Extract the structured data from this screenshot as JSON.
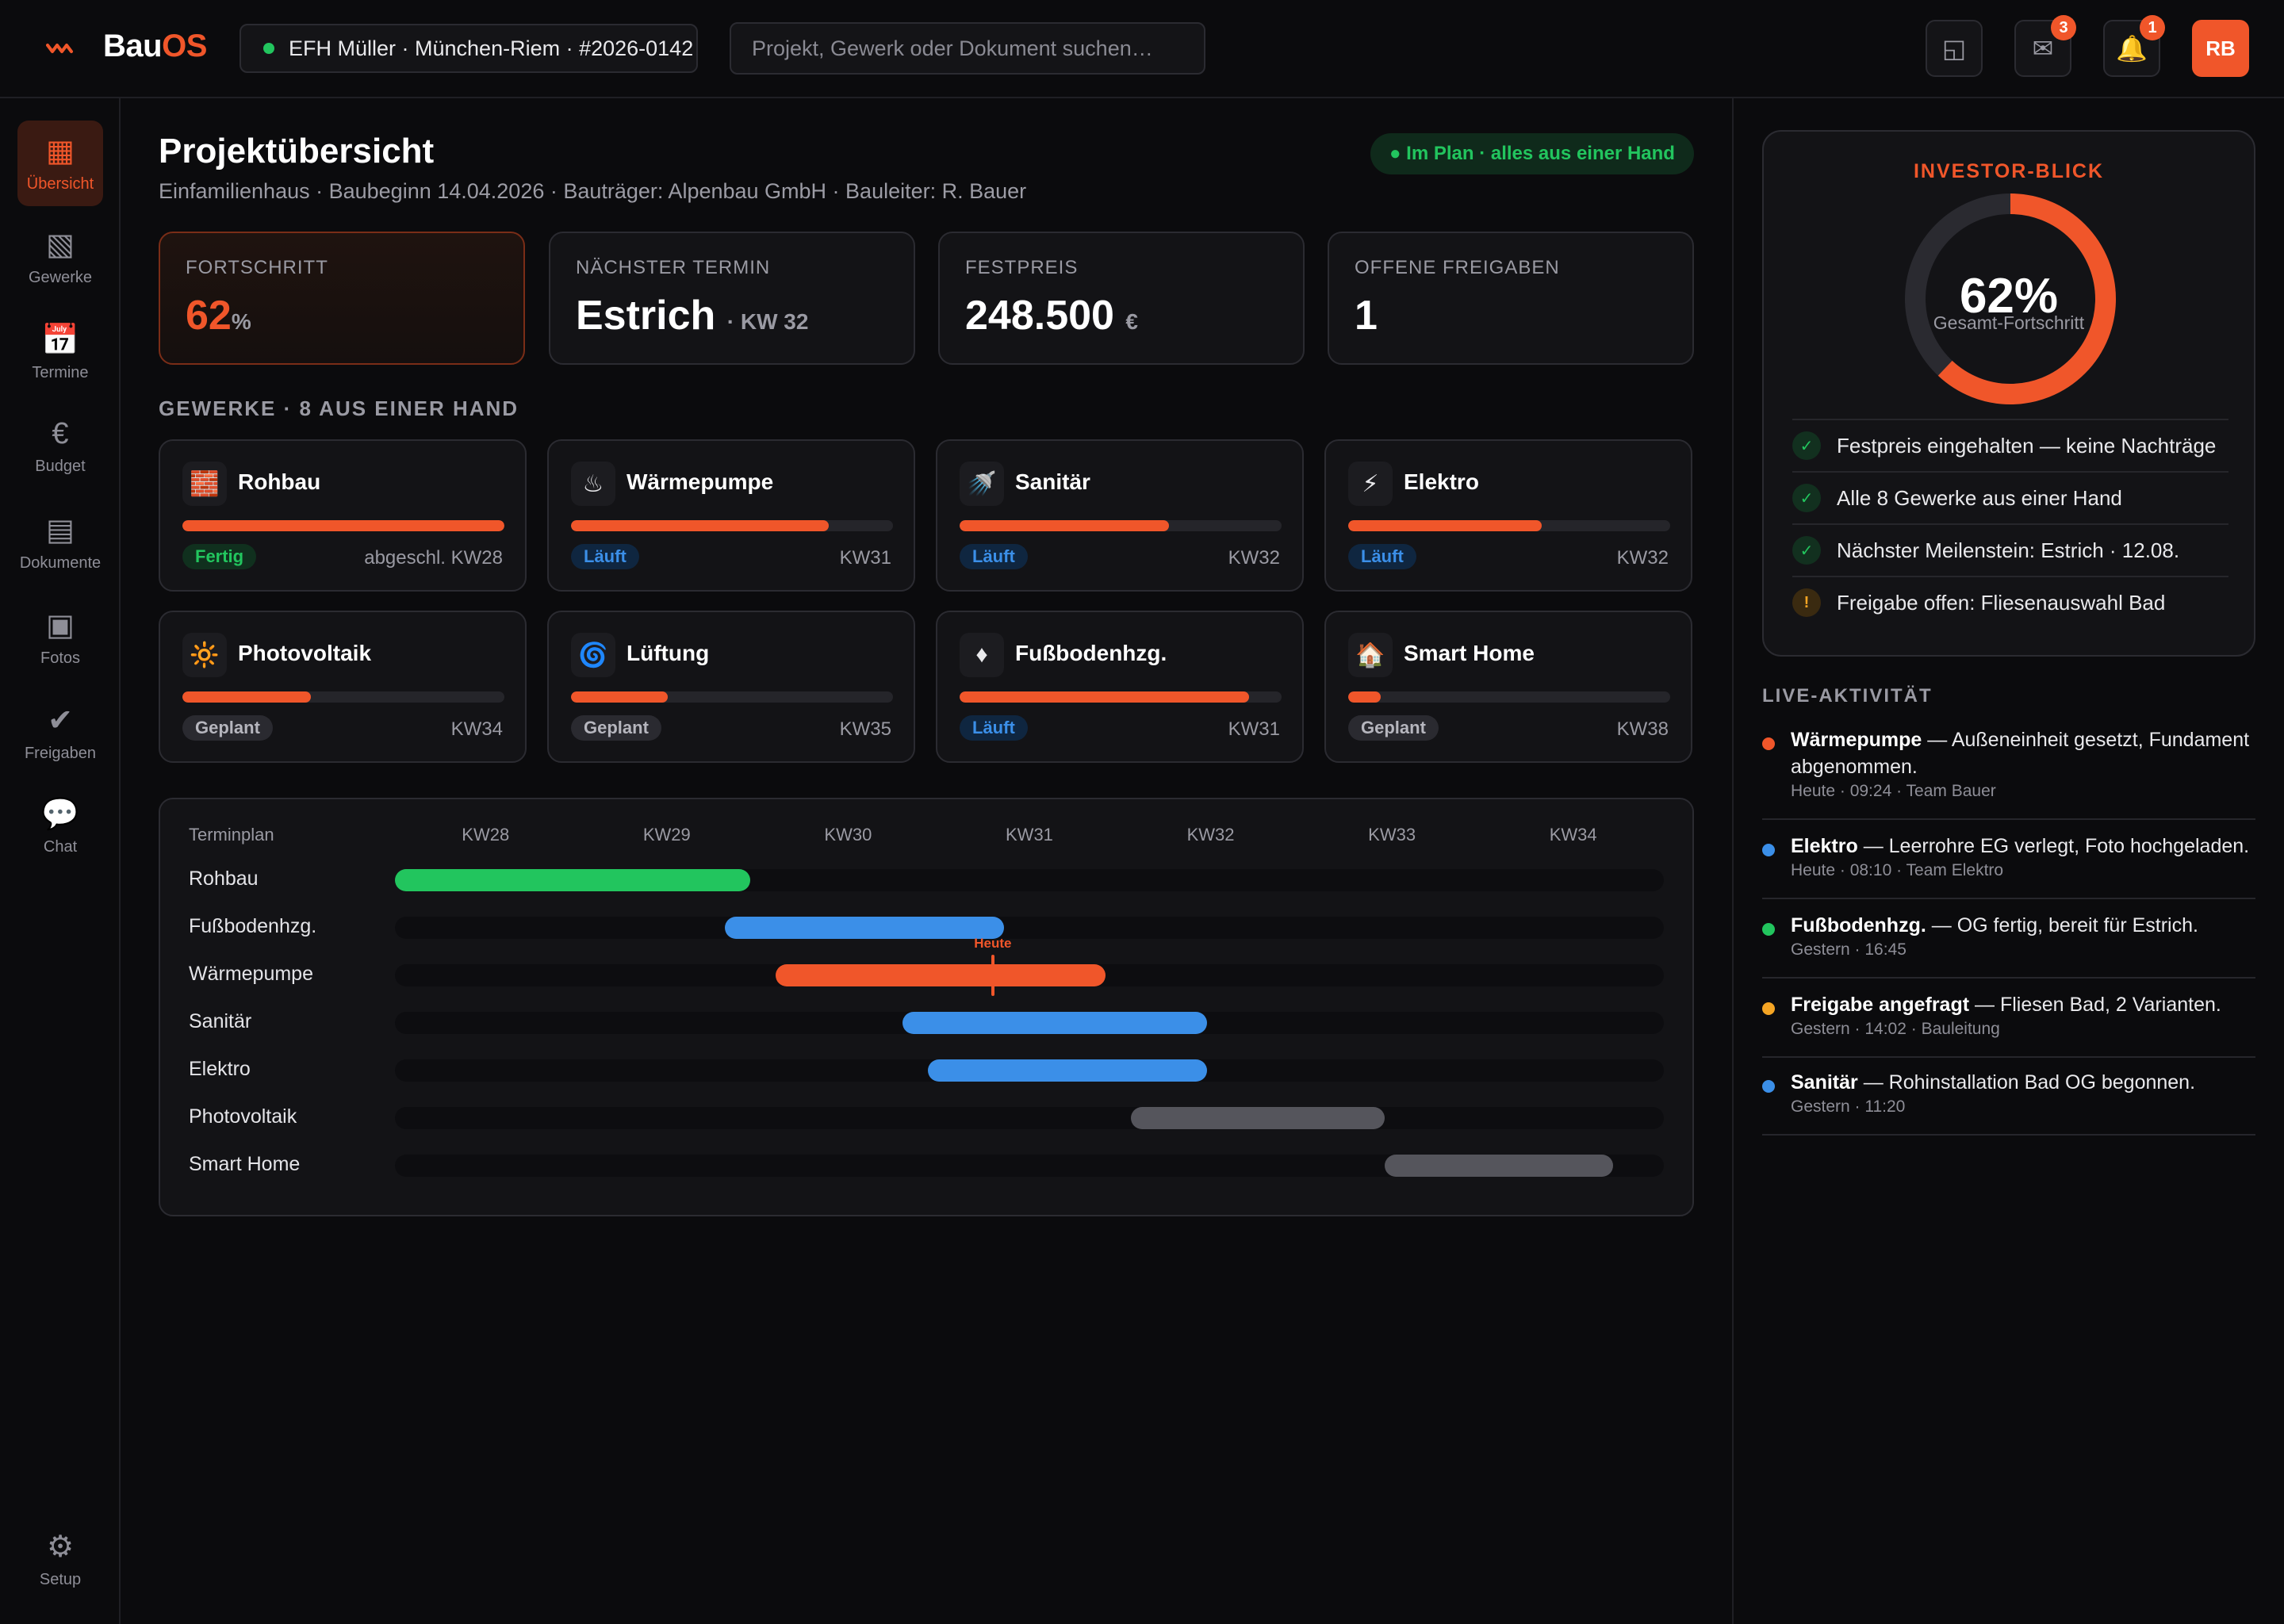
{
  "app": {
    "logo_prefix": "Bau",
    "logo_suffix": "OS",
    "project": "EFH Müller · München-Riem · #2026-0142",
    "search_placeholder": "Projekt, Gewerk oder Dokument suchen…",
    "icons": [
      {
        "name": "layout-icon",
        "glyph": "◱",
        "badge": ""
      },
      {
        "name": "mail-icon",
        "glyph": "✉",
        "badge": "3"
      },
      {
        "name": "bell-icon",
        "glyph": "🔔",
        "badge": "1"
      }
    ],
    "avatar": "RB"
  },
  "sidebar": {
    "items": [
      {
        "label": "Übersicht",
        "icon": "grid-icon",
        "glyph": "▦",
        "active": true
      },
      {
        "label": "Gewerke",
        "icon": "layers-icon",
        "glyph": "▧",
        "active": false
      },
      {
        "label": "Termine",
        "icon": "calendar-icon",
        "glyph": "📅",
        "active": false
      },
      {
        "label": "Budget",
        "icon": "euro-icon",
        "glyph": "€",
        "active": false
      },
      {
        "label": "Dokumente",
        "icon": "document-icon",
        "glyph": "▤",
        "active": false
      },
      {
        "label": "Fotos",
        "icon": "photo-icon",
        "glyph": "▣",
        "active": false
      },
      {
        "label": "Freigaben",
        "icon": "check-icon",
        "glyph": "✔",
        "active": false
      },
      {
        "label": "Chat",
        "icon": "chat-icon",
        "glyph": "💬",
        "active": false
      }
    ],
    "setup": {
      "label": "Setup",
      "icon": "gear-icon",
      "glyph": "⚙"
    }
  },
  "header": {
    "title": "Projektübersicht",
    "subtitle": "Einfamilienhaus · Baubeginn 14.04.2026 · Bauträger: Alpenbau GmbH · Bauleiter: R. Bauer",
    "status_badge": "● Im Plan · alles aus einer Hand"
  },
  "kpis": {
    "progress": {
      "label": "FORTSCHRITT",
      "value": "62",
      "unit": "%"
    },
    "next_date": {
      "label": "NÄCHSTER TERMIN",
      "value": "Estrich",
      "suffix": "· KW 32"
    },
    "fixed_price": {
      "label": "FESTPREIS",
      "value": "248.500",
      "unit": "€"
    },
    "approvals": {
      "label": "OFFENE FREIGABEN",
      "value": "1"
    }
  },
  "trades_heading": "GEWERKE · 8 AUS EINER HAND",
  "trades": [
    {
      "name": "Rohbau",
      "glyph": "🧱",
      "icon": "brick-icon",
      "progress": 1.0,
      "status": "Fertig",
      "status_kind": "fertig",
      "week": "abgeschl. KW28"
    },
    {
      "name": "Wärmepumpe",
      "glyph": "♨",
      "icon": "heat-pump-icon",
      "progress": 0.8,
      "status": "Läuft",
      "status_kind": "laeuft",
      "week": "KW31"
    },
    {
      "name": "Sanitär",
      "glyph": "🚿",
      "icon": "shower-icon",
      "progress": 0.65,
      "status": "Läuft",
      "status_kind": "laeuft",
      "week": "KW32"
    },
    {
      "name": "Elektro",
      "glyph": "⚡",
      "icon": "lightning-icon",
      "progress": 0.6,
      "status": "Läuft",
      "status_kind": "laeuft",
      "week": "KW32"
    },
    {
      "name": "Photovoltaik",
      "glyph": "🔆",
      "icon": "sun-icon",
      "progress": 0.4,
      "status": "Geplant",
      "status_kind": "geplant",
      "week": "KW34"
    },
    {
      "name": "Lüftung",
      "glyph": "🌀",
      "icon": "fan-icon",
      "progress": 0.3,
      "status": "Geplant",
      "status_kind": "geplant",
      "week": "KW35"
    },
    {
      "name": "Fußbodenhzg.",
      "glyph": "♦",
      "icon": "floor-heating-icon",
      "progress": 0.9,
      "status": "Läuft",
      "status_kind": "laeuft",
      "week": "KW31"
    },
    {
      "name": "Smart Home",
      "glyph": "🏠",
      "icon": "home-icon",
      "progress": 0.1,
      "status": "Geplant",
      "status_kind": "geplant",
      "week": "KW38"
    }
  ],
  "schedule": {
    "title": "Terminplan",
    "weeks": [
      "KW28",
      "KW29",
      "KW30",
      "KW31",
      "KW32",
      "KW33",
      "KW34"
    ],
    "week_start": 27.5,
    "week_end": 34.5,
    "today_label": "Heute",
    "today_week": 30.8,
    "rows": [
      {
        "label": "Rohbau",
        "start": 27.5,
        "end": 29.46,
        "color": "#22c55e"
      },
      {
        "label": "Fußbodenhzg.",
        "start": 29.32,
        "end": 30.86,
        "color": "#3b8fe8"
      },
      {
        "label": "Wärmepumpe",
        "start": 29.6,
        "end": 31.42,
        "color": "#f0562a"
      },
      {
        "label": "Sanitär",
        "start": 30.3,
        "end": 31.98,
        "color": "#3b8fe8"
      },
      {
        "label": "Elektro",
        "start": 30.44,
        "end": 31.98,
        "color": "#3b8fe8"
      },
      {
        "label": "Photovoltaik",
        "start": 31.56,
        "end": 32.96,
        "color": "#55555c"
      },
      {
        "label": "Smart Home",
        "start": 32.96,
        "end": 34.22,
        "color": "#55555c"
      }
    ]
  },
  "investor": {
    "title": "INVESTOR-BLICK",
    "progress": 0.62,
    "progress_label": "62%",
    "progress_caption": "Gesamt-Fortschritt",
    "checks": [
      {
        "text": "Festpreis eingehalten — keine Nachträge",
        "kind": "ok",
        "glyph": "✓"
      },
      {
        "text": "Alle 8 Gewerke aus einer Hand",
        "kind": "ok",
        "glyph": "✓"
      },
      {
        "text": "Nächster Meilenstein: Estrich · 12.08.",
        "kind": "ok",
        "glyph": "✓"
      },
      {
        "text": "Freigabe offen: Fliesenauswahl Bad",
        "kind": "warn",
        "glyph": "!"
      }
    ]
  },
  "live": {
    "heading": "LIVE-AKTIVITÄT",
    "items": [
      {
        "title": "Wärmepumpe",
        "text": " — Außeneinheit gesetzt, Fundament abgenommen.",
        "meta": "Heute · 09:24 · Team Bauer",
        "color": "#f0562a"
      },
      {
        "title": "Elektro",
        "text": " — Leerrohre EG verlegt, Foto hochgeladen.",
        "meta": "Heute · 08:10 · Team Elektro",
        "color": "#3b8fe8"
      },
      {
        "title": "Fußbodenhzg.",
        "text": " — OG fertig, bereit für Estrich.",
        "meta": "Gestern · 16:45",
        "color": "#22c55e"
      },
      {
        "title": "Freigabe angefragt",
        "text": " — Fliesen Bad, 2 Varianten.",
        "meta": "Gestern · 14:02 · Bauleitung",
        "color": "#f5a524"
      },
      {
        "title": "Sanitär",
        "text": " — Rohinstallation Bad OG begonnen.",
        "meta": "Gestern · 11:20",
        "color": "#3b8fe8"
      }
    ]
  }
}
